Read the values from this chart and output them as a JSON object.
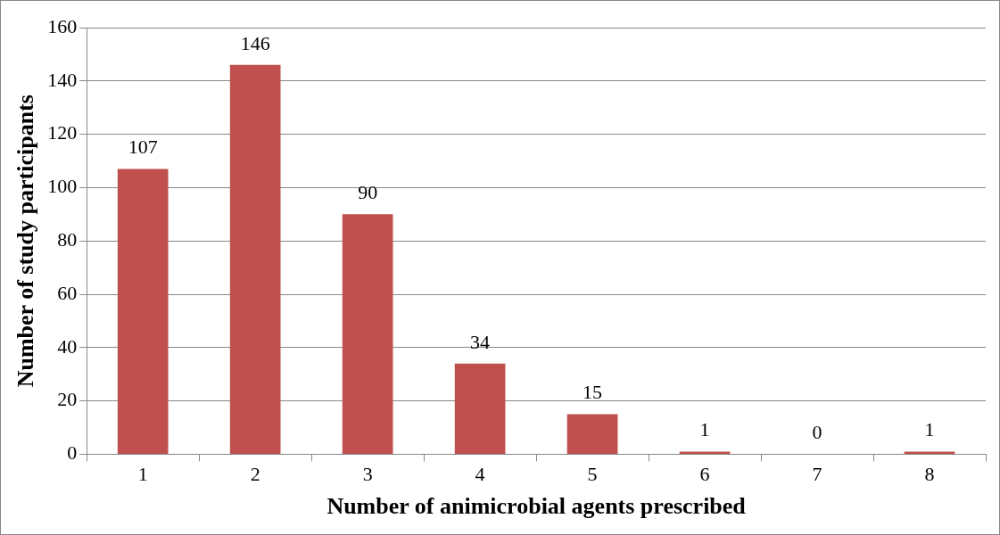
{
  "chart_data": {
    "type": "bar",
    "xlabel": "Number of animicrobial agents prescribed",
    "ylabel": "Number of study participants",
    "categories": [
      "1",
      "2",
      "3",
      "4",
      "5",
      "6",
      "7",
      "8"
    ],
    "values": [
      107,
      146,
      90,
      34,
      15,
      1,
      0,
      1
    ],
    "color": "#c0504d",
    "ylim": [
      0,
      160
    ],
    "yticks": [
      0,
      20,
      40,
      60,
      80,
      100,
      120,
      140,
      160
    ],
    "grid": "y",
    "data_labels": true
  }
}
